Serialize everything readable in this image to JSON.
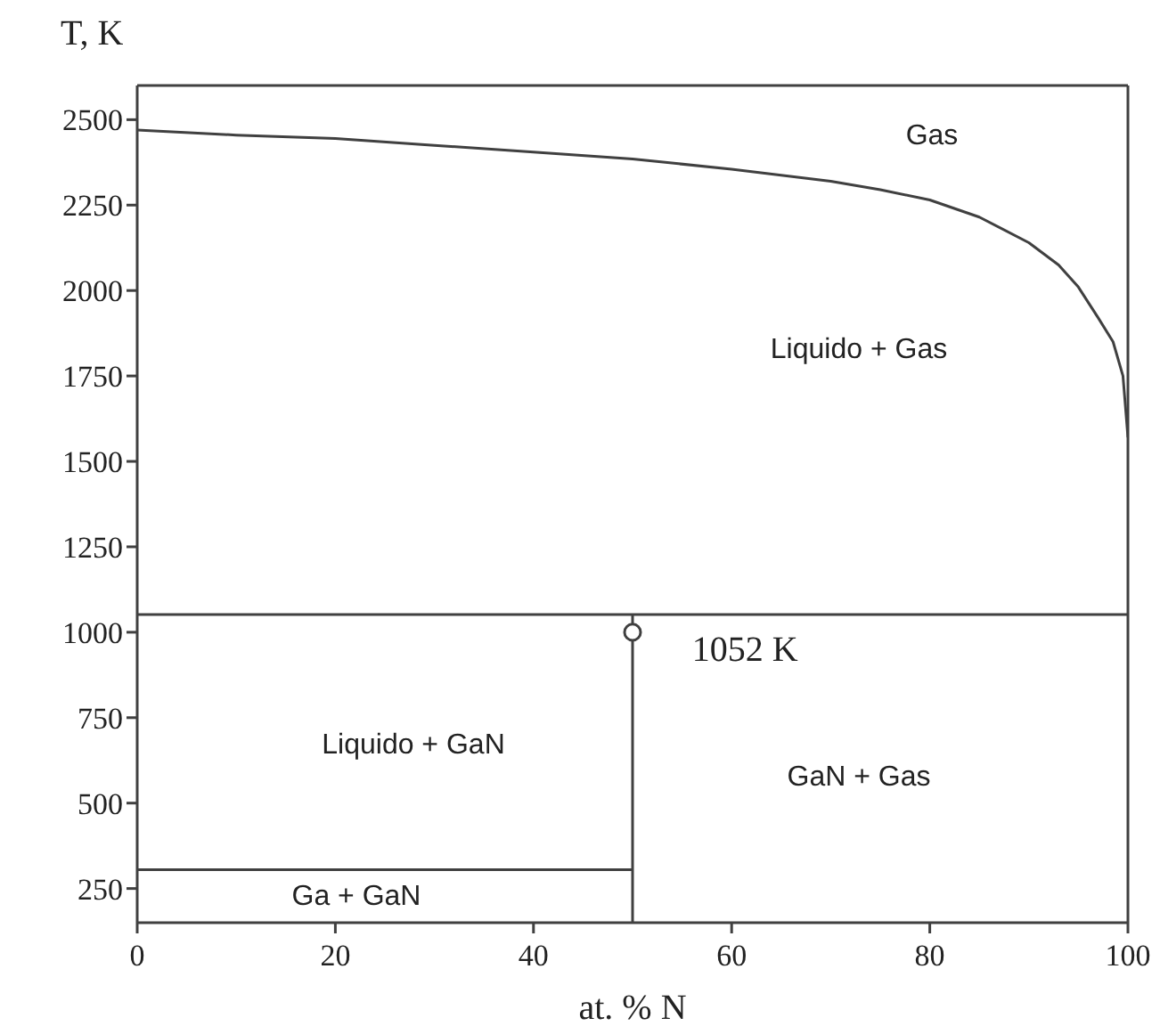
{
  "chart_data": {
    "type": "line",
    "ylabel": "T, K",
    "xlabel": "at. %  N",
    "xlim": [
      0,
      100
    ],
    "xticks": [
      0,
      20,
      40,
      60,
      80,
      100
    ],
    "ylim": [
      150,
      2600
    ],
    "yticks": [
      250,
      500,
      750,
      1000,
      1250,
      1500,
      1750,
      2000,
      2250,
      2500
    ],
    "line_style": "solid",
    "series": [
      {
        "color": "#404040",
        "marker": "none",
        "x": [
          0,
          10,
          20,
          30,
          40,
          50,
          60,
          70,
          75,
          80,
          85,
          90,
          93,
          95,
          97,
          98.5,
          99.5,
          100
        ],
        "values": [
          2470,
          2455,
          2445,
          2425,
          2405,
          2385,
          2355,
          2320,
          2295,
          2265,
          2215,
          2140,
          2075,
          2010,
          1920,
          1850,
          1750,
          1570
        ]
      },
      {
        "color": "#404040",
        "marker": "none",
        "x": [
          50,
          50
        ],
        "values": [
          150,
          1052
        ]
      },
      {
        "color": "#404040",
        "marker": "none",
        "x": [
          0,
          50
        ],
        "values": [
          305,
          305
        ]
      },
      {
        "type": "scatter",
        "color": "#404040",
        "marker": "circle",
        "x": [
          50
        ],
        "values": [
          1000
        ]
      }
    ],
    "ref_lines": [
      {
        "axis": "y",
        "value": 1052,
        "label": "1052 K",
        "color": "#404040"
      }
    ],
    "annotations": [
      "Gas",
      "Liquido + Gas",
      "Liquido + GaN",
      "GaN + Gas",
      "Ga + GaN"
    ]
  }
}
